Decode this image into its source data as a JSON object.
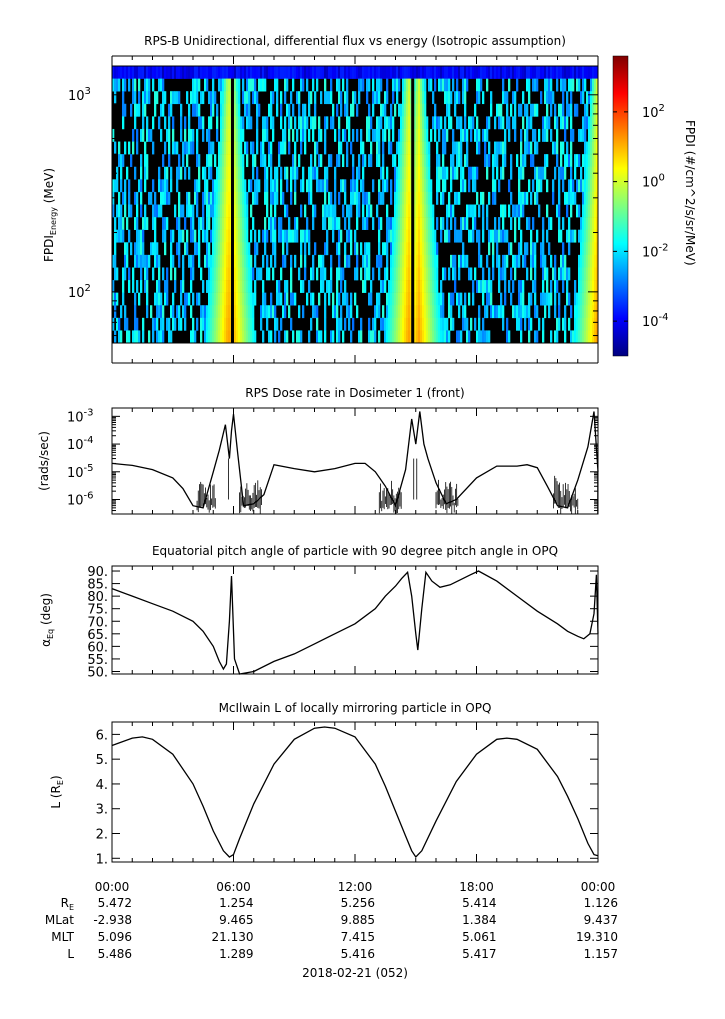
{
  "chart_data": [
    {
      "type": "heatmap",
      "title": "RPS-B  Unidirectional, differential flux vs energy (Isotropic assumption)",
      "ylabel_main": "FPDI",
      "ylabel_sub": "Energy",
      "ylabel_unit": " (MeV)",
      "y_scale": "log",
      "ylim": [
        55,
        1400
      ],
      "y_ticks": [
        {
          "value": 100,
          "base": "10",
          "exp": "2"
        },
        {
          "value": 1000,
          "base": "10",
          "exp": "3"
        }
      ],
      "colorbar_label": "FPDI (#/cm^2/s/sr/MeV)",
      "colorbar_scale": "log",
      "colorbar_range": [
        1e-05,
        4000
      ],
      "colorbar_ticks": [
        {
          "value": 0.0001,
          "base": "10",
          "exp": "-4"
        },
        {
          "value": 0.01,
          "base": "10",
          "exp": "-2"
        },
        {
          "value": 1,
          "base": "10",
          "exp": "0"
        },
        {
          "value": 100,
          "base": "10",
          "exp": "2"
        }
      ],
      "colormap": [
        "#00007f",
        "#0000ff",
        "#007fff",
        "#00ffff",
        "#7fff7f",
        "#ffff00",
        "#ff7f00",
        "#ff0000",
        "#7f0000"
      ],
      "background_color": "#000000",
      "radiation_belt_peaks_hours": [
        5.7,
        5.9,
        14.6,
        15.1,
        23.9
      ],
      "hours_range": [
        0,
        24
      ]
    },
    {
      "type": "line",
      "title": "RPS  Dose rate in Dosimeter 1 (front)",
      "ylabel": "(rads/sec)",
      "y_scale": "log",
      "ylim": [
        3e-07,
        0.002
      ],
      "y_ticks": [
        {
          "value": 1e-06,
          "base": "10",
          "exp": "-6"
        },
        {
          "value": 1e-05,
          "base": "10",
          "exp": "-5"
        },
        {
          "value": 0.0001,
          "base": "10",
          "exp": "-4"
        },
        {
          "value": 0.001,
          "base": "10",
          "exp": "-3"
        }
      ],
      "x": [
        0,
        1,
        2,
        3,
        3.5,
        4,
        4.5,
        5,
        5.3,
        5.6,
        5.8,
        5.9,
        6.0,
        6.2,
        6.5,
        7,
        7.5,
        8,
        9,
        10,
        11,
        12,
        12.5,
        13,
        13.5,
        14,
        14.5,
        14.8,
        15.0,
        15.2,
        15.4,
        15.6,
        16,
        16.5,
        17,
        18,
        19,
        20,
        20.5,
        21,
        21.5,
        22,
        22.5,
        23,
        23.5,
        23.8,
        24
      ],
      "y": [
        2e-05,
        1.7e-05,
        1.2e-05,
        6e-06,
        2.5e-06,
        6e-07,
        5e-07,
        1e-05,
        6e-05,
        0.0005,
        3e-05,
        0.0003,
        0.0012,
        5e-05,
        6e-07,
        7e-07,
        1.5e-06,
        1.8e-05,
        1.3e-05,
        1e-05,
        1.3e-05,
        2e-05,
        2e-05,
        1e-05,
        3e-06,
        6e-07,
        1.2e-05,
        0.0008,
        0.0001,
        0.0015,
        0.0001,
        3e-05,
        4e-06,
        7e-07,
        1e-06,
        6e-06,
        1.6e-05,
        1.6e-05,
        1.8e-05,
        1.4e-05,
        3e-06,
        6e-07,
        5e-07,
        5e-06,
        8e-05,
        0.0015,
        1e-05
      ]
    },
    {
      "type": "line",
      "title": "Equatorial pitch angle of particle with 90 degree pitch angle in OPQ",
      "ylabel_main": "α",
      "ylabel_sub": "Eq",
      "ylabel_unit": " (deg)",
      "ylim": [
        49,
        92
      ],
      "y_ticks": [
        50,
        55,
        60,
        65,
        70,
        75,
        80,
        85,
        90
      ],
      "y_tick_labels": [
        "50.",
        "55.",
        "60.",
        "65.",
        "70.",
        "75.",
        "80.",
        "85.",
        "90."
      ],
      "x": [
        0,
        1,
        2,
        3,
        4,
        4.5,
        5,
        5.3,
        5.5,
        5.65,
        5.8,
        5.9,
        6.05,
        6.3,
        7,
        8,
        9,
        10,
        11,
        12,
        13,
        13.5,
        14,
        14.3,
        14.6,
        14.8,
        15.0,
        15.1,
        15.3,
        15.5,
        15.8,
        16.2,
        16.7,
        17.2,
        17.7,
        18.1,
        19,
        20,
        21,
        22,
        22.5,
        23,
        23.3,
        23.6,
        23.8,
        23.92,
        24
      ],
      "y": [
        83,
        80,
        77,
        74,
        70,
        66,
        60,
        54,
        51,
        53,
        70,
        88,
        55,
        49,
        50,
        54,
        57,
        61,
        65,
        69,
        75,
        80,
        84,
        87,
        89.5,
        80,
        65,
        58.5,
        75,
        89.5,
        86,
        83.5,
        84.5,
        86.5,
        88.5,
        90,
        86,
        80,
        74,
        69,
        66,
        64,
        63,
        65,
        73,
        88.5,
        65
      ]
    },
    {
      "type": "line",
      "title": "McIlwain L of locally mirroring particle in OPQ",
      "ylabel_main": "L (R",
      "ylabel_sub": "E",
      "ylabel_unit": ")",
      "ylim": [
        0.85,
        6.5
      ],
      "y_ticks": [
        1,
        2,
        3,
        4,
        5,
        6
      ],
      "y_tick_labels": [
        "1.",
        "2.",
        "3.",
        "4.",
        "5.",
        "6."
      ],
      "x": [
        0,
        1,
        1.5,
        2,
        3,
        4,
        4.5,
        5,
        5.5,
        5.8,
        6.0,
        6.3,
        7,
        8,
        9,
        10,
        10.5,
        11,
        12,
        13,
        13.5,
        14,
        14.5,
        14.8,
        15.0,
        15.3,
        16,
        17,
        18,
        19,
        19.5,
        20,
        21,
        22,
        22.5,
        23,
        23.5,
        23.8,
        24
      ],
      "y": [
        5.55,
        5.85,
        5.9,
        5.8,
        5.2,
        4.0,
        3.1,
        2.1,
        1.3,
        1.05,
        1.15,
        1.8,
        3.2,
        4.8,
        5.8,
        6.25,
        6.3,
        6.25,
        5.9,
        4.8,
        3.9,
        2.9,
        1.9,
        1.3,
        1.05,
        1.3,
        2.5,
        4.1,
        5.2,
        5.8,
        5.85,
        5.8,
        5.4,
        4.3,
        3.5,
        2.6,
        1.6,
        1.15,
        1.1
      ]
    }
  ],
  "x_axis": {
    "hours": [
      0,
      6,
      12,
      18,
      24
    ],
    "tick_labels": [
      "00:00",
      "06:00",
      "12:00",
      "18:00",
      "00:00"
    ],
    "date_label": "2018-02-21 (052)"
  },
  "ephemeris": {
    "rows": [
      {
        "label_main": "R",
        "label_sub": "E",
        "values": [
          "5.472",
          "1.254",
          "5.256",
          "5.414",
          "1.126"
        ]
      },
      {
        "label_main": "MLat",
        "label_sub": "",
        "values": [
          "-2.938",
          "9.465",
          "9.885",
          "1.384",
          "9.437"
        ]
      },
      {
        "label_main": "MLT",
        "label_sub": "",
        "values": [
          "5.096",
          "21.130",
          "7.415",
          "5.061",
          "19.310"
        ]
      },
      {
        "label_main": "L",
        "label_sub": "",
        "values": [
          "5.486",
          "1.289",
          "5.416",
          "5.417",
          "1.157"
        ]
      }
    ]
  }
}
